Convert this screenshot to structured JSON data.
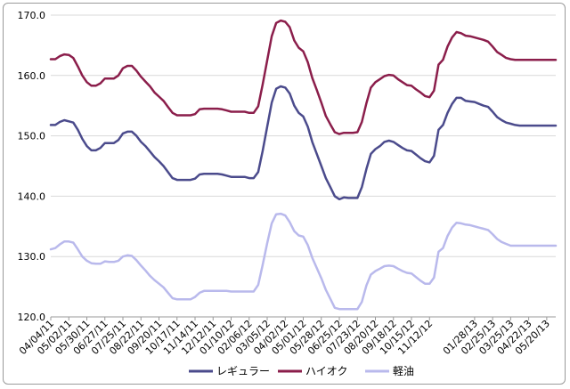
{
  "chart_data": {
    "type": "line",
    "title": "",
    "xlabel": "",
    "ylabel": "",
    "ylim": [
      120,
      170
    ],
    "yticks": [
      "120.0",
      "130.0",
      "140.0",
      "150.0",
      "160.0",
      "170.0"
    ],
    "grid": "horizontal",
    "legend_position": "bottom",
    "x": [
      "04/04/11",
      "04/11/11",
      "04/18/11",
      "04/25/11",
      "05/02/11",
      "05/09/11",
      "05/16/11",
      "05/23/11",
      "05/30/11",
      "06/06/11",
      "06/13/11",
      "06/20/11",
      "06/27/11",
      "07/04/11",
      "07/11/11",
      "07/18/11",
      "07/25/11",
      "08/01/11",
      "08/08/11",
      "08/15/11",
      "08/22/11",
      "08/29/11",
      "09/05/11",
      "09/12/11",
      "09/20/11",
      "09/26/11",
      "10/03/11",
      "10/11/11",
      "10/17/11",
      "10/24/11",
      "10/31/11",
      "11/07/11",
      "11/14/11",
      "11/21/11",
      "11/28/11",
      "12/05/11",
      "12/12/11",
      "12/19/11",
      "12/26/11",
      "01/04/12",
      "01/10/12",
      "01/16/12",
      "01/23/12",
      "01/30/12",
      "02/06/12",
      "02/13/12",
      "02/20/12",
      "02/27/12",
      "03/05/12",
      "03/12/12",
      "03/19/12",
      "03/26/12",
      "04/02/12",
      "04/09/12",
      "04/16/12",
      "04/23/12",
      "05/01/12",
      "05/07/12",
      "05/14/12",
      "05/21/12",
      "05/28/12",
      "06/04/12",
      "06/11/12",
      "06/18/12",
      "06/25/12",
      "07/02/12",
      "07/09/12",
      "07/17/12",
      "07/23/12",
      "07/30/12",
      "08/06/12",
      "08/13/12",
      "08/20/12",
      "08/27/12",
      "09/03/12",
      "09/10/12",
      "09/18/12",
      "09/24/12",
      "10/01/12",
      "10/09/12",
      "10/15/12",
      "10/22/12",
      "10/29/12",
      "11/05/12",
      "11/12/12",
      "11/19/12",
      "11/26/12",
      "12/03/12",
      "12/10/12",
      "12/17/12",
      "12/25/12",
      "01/07/13",
      "01/15/13",
      "01/21/13",
      "01/28/13",
      "02/04/13",
      "02/12/13",
      "02/18/13",
      "02/25/13",
      "03/04/13",
      "03/11/13",
      "03/18/13",
      "03/25/13",
      "04/01/13",
      "04/08/13",
      "04/15/13",
      "04/22/13",
      "05/01/13",
      "05/07/13",
      "05/13/13",
      "05/20/13",
      "05/27/13",
      "06/03/13"
    ],
    "xtick_labels": [
      "04/04/11",
      "05/02/11",
      "05/30/11",
      "06/27/11",
      "07/25/11",
      "08/22/11",
      "09/20/11",
      "10/17/11",
      "11/14/11",
      "12/12/11",
      "01/10/12",
      "02/06/12",
      "03/05/12",
      "04/02/12",
      "05/01/12",
      "05/28/12",
      "06/25/12",
      "07/23/12",
      "08/20/12",
      "09/18/12",
      "10/15/12",
      "11/12/12",
      "01/28/13",
      "02/25/13",
      "03/25/13",
      "04/22/13",
      "05/20/13"
    ],
    "series": [
      {
        "name": "レギュラー",
        "color": "#4b4b8c",
        "values": [
          151.8,
          151.8,
          152.3,
          152.6,
          152.4,
          152.2,
          151.0,
          149.5,
          148.3,
          147.6,
          147.6,
          148.0,
          148.8,
          148.8,
          148.8,
          149.3,
          150.4,
          150.7,
          150.7,
          150.0,
          149.0,
          148.3,
          147.4,
          146.5,
          145.8,
          145.0,
          144.0,
          143.0,
          142.7,
          142.7,
          142.7,
          142.7,
          142.9,
          143.6,
          143.7,
          143.7,
          143.7,
          143.7,
          143.6,
          143.4,
          143.2,
          143.2,
          143.2,
          143.2,
          143.0,
          143.0,
          144.0,
          147.5,
          151.5,
          155.5,
          157.8,
          158.2,
          158.0,
          157.0,
          155.0,
          153.8,
          153.2,
          151.5,
          149.0,
          147.0,
          145.0,
          143.0,
          141.5,
          140.0,
          139.5,
          139.8,
          139.7,
          139.7,
          139.7,
          141.5,
          144.5,
          147.0,
          147.8,
          148.3,
          149.0,
          149.2,
          149.0,
          148.5,
          148.0,
          147.6,
          147.5,
          146.9,
          146.3,
          145.8,
          145.6,
          146.7,
          151.0,
          151.8,
          153.8,
          155.3,
          156.3,
          156.3,
          155.8,
          155.7,
          155.6,
          155.3,
          155.0,
          154.8,
          154.0,
          153.1,
          152.6,
          152.2,
          152.0,
          151.8,
          151.7,
          151.7,
          151.7,
          151.7,
          151.7,
          151.7,
          151.7,
          151.7,
          151.7
        ]
      },
      {
        "name": "ハイオク",
        "color": "#8b1e4b",
        "values": [
          162.7,
          162.7,
          163.2,
          163.5,
          163.4,
          162.9,
          161.5,
          160.0,
          158.9,
          158.3,
          158.3,
          158.7,
          159.5,
          159.5,
          159.5,
          160.0,
          161.2,
          161.6,
          161.6,
          160.8,
          159.8,
          159.0,
          158.2,
          157.2,
          156.5,
          155.8,
          154.8,
          153.8,
          153.4,
          153.4,
          153.4,
          153.4,
          153.6,
          154.4,
          154.5,
          154.5,
          154.5,
          154.5,
          154.4,
          154.2,
          154.0,
          154.0,
          154.0,
          154.0,
          153.8,
          153.8,
          154.9,
          158.5,
          162.5,
          166.5,
          168.7,
          169.1,
          168.9,
          168.0,
          165.8,
          164.6,
          164.0,
          162.2,
          159.6,
          157.6,
          155.5,
          153.3,
          151.9,
          150.6,
          150.3,
          150.5,
          150.5,
          150.5,
          150.6,
          152.3,
          155.4,
          158.0,
          158.9,
          159.4,
          159.9,
          160.1,
          160.0,
          159.4,
          158.9,
          158.4,
          158.3,
          157.7,
          157.2,
          156.6,
          156.4,
          157.5,
          161.8,
          162.6,
          164.8,
          166.3,
          167.2,
          167.0,
          166.6,
          166.5,
          166.3,
          166.1,
          165.9,
          165.6,
          164.8,
          163.9,
          163.4,
          162.9,
          162.7,
          162.6,
          162.6,
          162.6,
          162.6,
          162.6,
          162.6,
          162.6,
          162.6,
          162.6,
          162.6
        ]
      },
      {
        "name": "軽油",
        "color": "#b9b9ec",
        "values": [
          131.2,
          131.4,
          132.0,
          132.5,
          132.5,
          132.3,
          131.2,
          130.0,
          129.3,
          128.9,
          128.8,
          128.8,
          129.2,
          129.1,
          129.1,
          129.3,
          130.0,
          130.2,
          130.1,
          129.4,
          128.5,
          127.7,
          126.8,
          126.1,
          125.5,
          124.9,
          124.0,
          123.1,
          122.9,
          122.9,
          122.9,
          122.9,
          123.3,
          124.0,
          124.3,
          124.3,
          124.3,
          124.3,
          124.3,
          124.3,
          124.2,
          124.2,
          124.2,
          124.2,
          124.2,
          124.2,
          125.3,
          128.6,
          132.2,
          135.5,
          137.0,
          137.1,
          136.8,
          135.7,
          134.2,
          133.5,
          133.3,
          131.9,
          129.8,
          128.1,
          126.4,
          124.5,
          123.0,
          121.5,
          121.3,
          121.3,
          121.3,
          121.3,
          121.3,
          122.5,
          125.2,
          127.0,
          127.6,
          128.0,
          128.4,
          128.5,
          128.4,
          128.0,
          127.6,
          127.3,
          127.2,
          126.6,
          126.0,
          125.5,
          125.5,
          126.5,
          130.8,
          131.4,
          133.4,
          134.8,
          135.6,
          135.5,
          135.3,
          135.2,
          135.0,
          134.8,
          134.6,
          134.4,
          133.7,
          132.9,
          132.4,
          132.1,
          131.8,
          131.8,
          131.8,
          131.8,
          131.8,
          131.8,
          131.8,
          131.8,
          131.8,
          131.8,
          131.8
        ]
      }
    ]
  }
}
